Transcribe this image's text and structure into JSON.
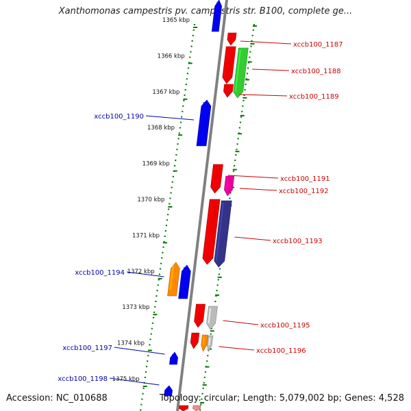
{
  "title": "Xanthomonas campestris pv. campestris str. B100, complete ge...",
  "footer": {
    "accession": "Accession: NC_010688",
    "topology": "Topology: circular; Length: 5,079,002 bp; Genes: 4,528"
  },
  "colors": {
    "backbone": "#808080",
    "ruler": "#007a00",
    "forward_label": "#cc0000",
    "reverse_label": "#0000aa"
  },
  "ruler_labels": [
    "1365 kbp",
    "1366 kbp",
    "1367 kbp",
    "1368 kbp",
    "1369 kbp",
    "1370 kbp",
    "1371 kbp",
    "1372 kbp",
    "1373 kbp",
    "1374 kbp",
    "1375 kbp"
  ],
  "genes": [
    {
      "id": "g0",
      "strand": "-",
      "color": "#0000ee",
      "label": ""
    },
    {
      "id": "g1",
      "strand": "+",
      "color": "#ee0000",
      "label": ""
    },
    {
      "id": "g2",
      "strand": "+",
      "color": "#ee0000",
      "label": "xccb100_1187"
    },
    {
      "id": "g3",
      "strand": "+",
      "color": "#33cc33",
      "label": "xccb100_1188"
    },
    {
      "id": "g4",
      "strand": "+",
      "color": "#ee0000",
      "label": "xccb100_1189"
    },
    {
      "id": "g5",
      "strand": "-",
      "color": "#0000ee",
      "label": "xccb100_1190"
    },
    {
      "id": "g6",
      "strand": "+",
      "color": "#ee0000",
      "label": "xccb100_1191"
    },
    {
      "id": "g7",
      "strand": "+",
      "color": "#ee0099",
      "label": "xccb100_1192"
    },
    {
      "id": "g8",
      "strand": "+",
      "color": "#ee0000",
      "label": ""
    },
    {
      "id": "g9",
      "strand": "+",
      "color": "#333388",
      "label": "xccb100_1193"
    },
    {
      "id": "g10",
      "strand": "-",
      "color": "#ff8800",
      "label": "xccb100_1194"
    },
    {
      "id": "g11",
      "strand": "-",
      "color": "#0000ee",
      "label": ""
    },
    {
      "id": "g12",
      "strand": "+",
      "color": "#ee0000",
      "label": ""
    },
    {
      "id": "g13",
      "strand": "+",
      "color": "#bbbbbb",
      "label": "xccb100_1195"
    },
    {
      "id": "g14",
      "strand": "+",
      "color": "#ee0000",
      "label": ""
    },
    {
      "id": "g15",
      "strand": "+",
      "color": "#ff8800",
      "label": ""
    },
    {
      "id": "g16",
      "strand": "+",
      "color": "#bbbbbb",
      "label": "xccb100_1196"
    },
    {
      "id": "g17",
      "strand": "-",
      "color": "#0000ee",
      "label": "xccb100_1197"
    },
    {
      "id": "g18",
      "strand": "-",
      "color": "#0000ee",
      "label": "xccb100_1198"
    },
    {
      "id": "g19",
      "strand": "+",
      "color": "#ee0000",
      "label": ""
    },
    {
      "id": "g20",
      "strand": "+",
      "color": "#ee8888",
      "label": ""
    }
  ]
}
